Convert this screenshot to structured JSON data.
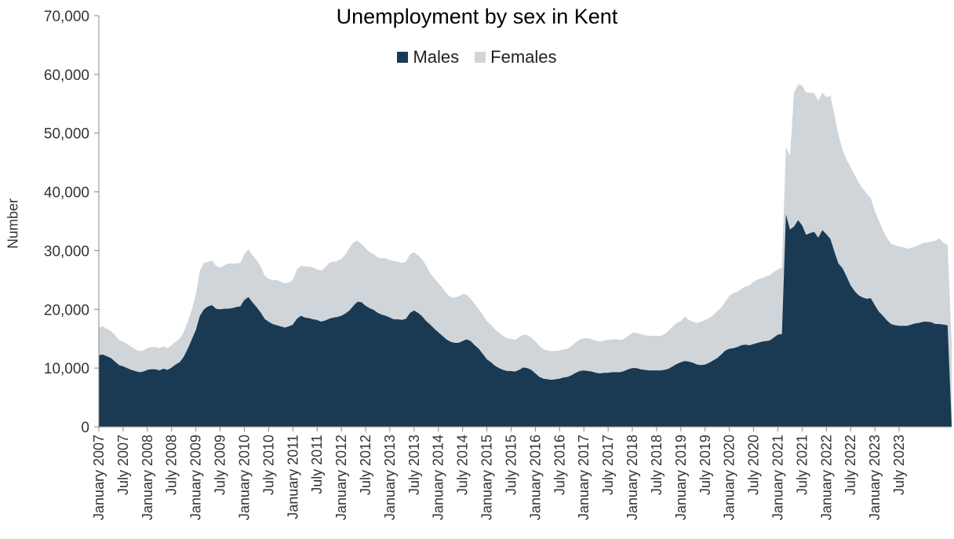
{
  "chart_data": {
    "type": "area",
    "stacked": true,
    "title": "Unemployment by sex in Kent",
    "xlabel": "",
    "ylabel": "Number",
    "ylim": [
      0,
      70000
    ],
    "yticks": [
      0,
      10000,
      20000,
      30000,
      40000,
      50000,
      60000,
      70000
    ],
    "ytick_labels": [
      "0",
      "10,000",
      "20,000",
      "30,000",
      "40,000",
      "50,000",
      "60,000",
      "70,000"
    ],
    "grid": false,
    "legend_position": "top-center",
    "x_start": "January 2007",
    "x_end": "October 2023",
    "x_tick_labels": [
      "January 2007",
      "July 2007",
      "January 2008",
      "July 2008",
      "January 2009",
      "July 2009",
      "January 2010",
      "July 2010",
      "January 2011",
      "July 2011",
      "January 2012",
      "July 2012",
      "January 2013",
      "July 2013",
      "January 2014",
      "July 2014",
      "January 2015",
      "July 2015",
      "January 2016",
      "July 2016",
      "January 2017",
      "July 2017",
      "January 2018",
      "July 2018",
      "January 2019",
      "July 2019",
      "January 2020",
      "July 2020",
      "January 2021",
      "July 2021",
      "January 2022",
      "July 2022",
      "January 2023",
      "July 2023"
    ],
    "series": [
      {
        "name": "Males",
        "color": "#1a3a54",
        "values": [
          12200,
          12300,
          12000,
          11700,
          11100,
          10500,
          10300,
          10000,
          9700,
          9500,
          9300,
          9400,
          9700,
          9800,
          9800,
          9600,
          9900,
          9700,
          10100,
          10600,
          11000,
          11900,
          13300,
          14900,
          16500,
          18900,
          20000,
          20500,
          20700,
          20100,
          20000,
          20100,
          20100,
          20200,
          20400,
          20500,
          21600,
          22100,
          21200,
          20400,
          19500,
          18400,
          17900,
          17500,
          17300,
          17100,
          16900,
          17100,
          17400,
          18400,
          18900,
          18600,
          18500,
          18300,
          18200,
          17900,
          18100,
          18400,
          18600,
          18700,
          18900,
          19300,
          19800,
          20600,
          21300,
          21200,
          20600,
          20200,
          19900,
          19400,
          19100,
          18900,
          18600,
          18300,
          18300,
          18200,
          18400,
          19400,
          19800,
          19400,
          18800,
          18000,
          17400,
          16700,
          16100,
          15500,
          14900,
          14500,
          14300,
          14300,
          14600,
          14900,
          14600,
          13900,
          13300,
          12400,
          11500,
          11000,
          10400,
          10000,
          9700,
          9500,
          9500,
          9400,
          9700,
          10100,
          10000,
          9700,
          9100,
          8500,
          8200,
          8100,
          8000,
          8100,
          8200,
          8400,
          8500,
          8800,
          9200,
          9500,
          9600,
          9500,
          9400,
          9200,
          9100,
          9200,
          9200,
          9300,
          9300,
          9300,
          9500,
          9800,
          10000,
          10000,
          9800,
          9700,
          9600,
          9600,
          9600,
          9600,
          9700,
          9900,
          10300,
          10700,
          11000,
          11200,
          11100,
          10900,
          10600,
          10500,
          10600,
          10900,
          11300,
          11700,
          12300,
          13000,
          13300,
          13400,
          13600,
          13900,
          14000,
          13900,
          14100,
          14300,
          14500,
          14600,
          14700,
          15200,
          15700,
          15800,
          36200,
          33600,
          34100,
          35200,
          34300,
          32700,
          33000,
          33200,
          32200,
          33500,
          32800,
          32000,
          29800,
          27800,
          27000,
          25600,
          24100,
          23100,
          22400,
          22000,
          21800,
          21900,
          20700,
          19600,
          18900,
          18100,
          17500,
          17300,
          17200,
          17200,
          17200,
          17400,
          17600,
          17700,
          17900,
          17900,
          17800,
          17500,
          17500,
          17400,
          17300,
          500
        ]
      },
      {
        "name": "Females",
        "color": "#d0d5da",
        "values": [
          4700,
          4800,
          4700,
          4600,
          4500,
          4300,
          4200,
          4100,
          4000,
          3700,
          3600,
          3600,
          3700,
          3800,
          3800,
          3800,
          3800,
          3700,
          3800,
          3900,
          4000,
          4200,
          4600,
          5000,
          6000,
          7700,
          7900,
          7600,
          7600,
          7300,
          7100,
          7400,
          7700,
          7600,
          7400,
          7400,
          7800,
          8100,
          8000,
          8000,
          7900,
          7400,
          7300,
          7500,
          7700,
          7600,
          7500,
          7500,
          7600,
          8400,
          8500,
          8700,
          8800,
          8800,
          8600,
          8700,
          9000,
          9500,
          9500,
          9500,
          9700,
          10000,
          10700,
          10800,
          10400,
          9900,
          9800,
          9500,
          9500,
          9400,
          9600,
          9800,
          9800,
          9900,
          9800,
          9700,
          9700,
          10000,
          9900,
          9800,
          9700,
          9400,
          8700,
          8600,
          8400,
          8200,
          7800,
          7600,
          7700,
          7900,
          8000,
          7600,
          7200,
          7000,
          6700,
          6700,
          6500,
          6400,
          6200,
          6000,
          5800,
          5600,
          5500,
          5400,
          5600,
          5600,
          5600,
          5500,
          5500,
          5300,
          5000,
          4900,
          4900,
          4800,
          4800,
          4800,
          4800,
          5000,
          5200,
          5400,
          5500,
          5600,
          5500,
          5500,
          5400,
          5500,
          5600,
          5600,
          5600,
          5500,
          5500,
          5700,
          6000,
          6000,
          6000,
          5900,
          5900,
          5900,
          5900,
          5900,
          6100,
          6500,
          6800,
          7000,
          7000,
          7600,
          7100,
          7000,
          7100,
          7400,
          7600,
          7600,
          7700,
          8000,
          8000,
          8300,
          9000,
          9400,
          9400,
          9600,
          9900,
          10200,
          10600,
          10800,
          10800,
          11000,
          11100,
          11200,
          11100,
          11300,
          11500,
          12500,
          22800,
          23100,
          23800,
          24200,
          23900,
          23600,
          23300,
          23400,
          23300,
          24400,
          23300,
          21900,
          20200,
          19900,
          20100,
          19800,
          19200,
          18600,
          17900,
          17000,
          16000,
          15500,
          14600,
          14000,
          13700,
          13600,
          13500,
          13400,
          13100,
          13100,
          13100,
          13300,
          13400,
          13500,
          13800,
          14200,
          14600,
          13900,
          13700,
          13800,
          14000,
          200
        ]
      }
    ]
  }
}
